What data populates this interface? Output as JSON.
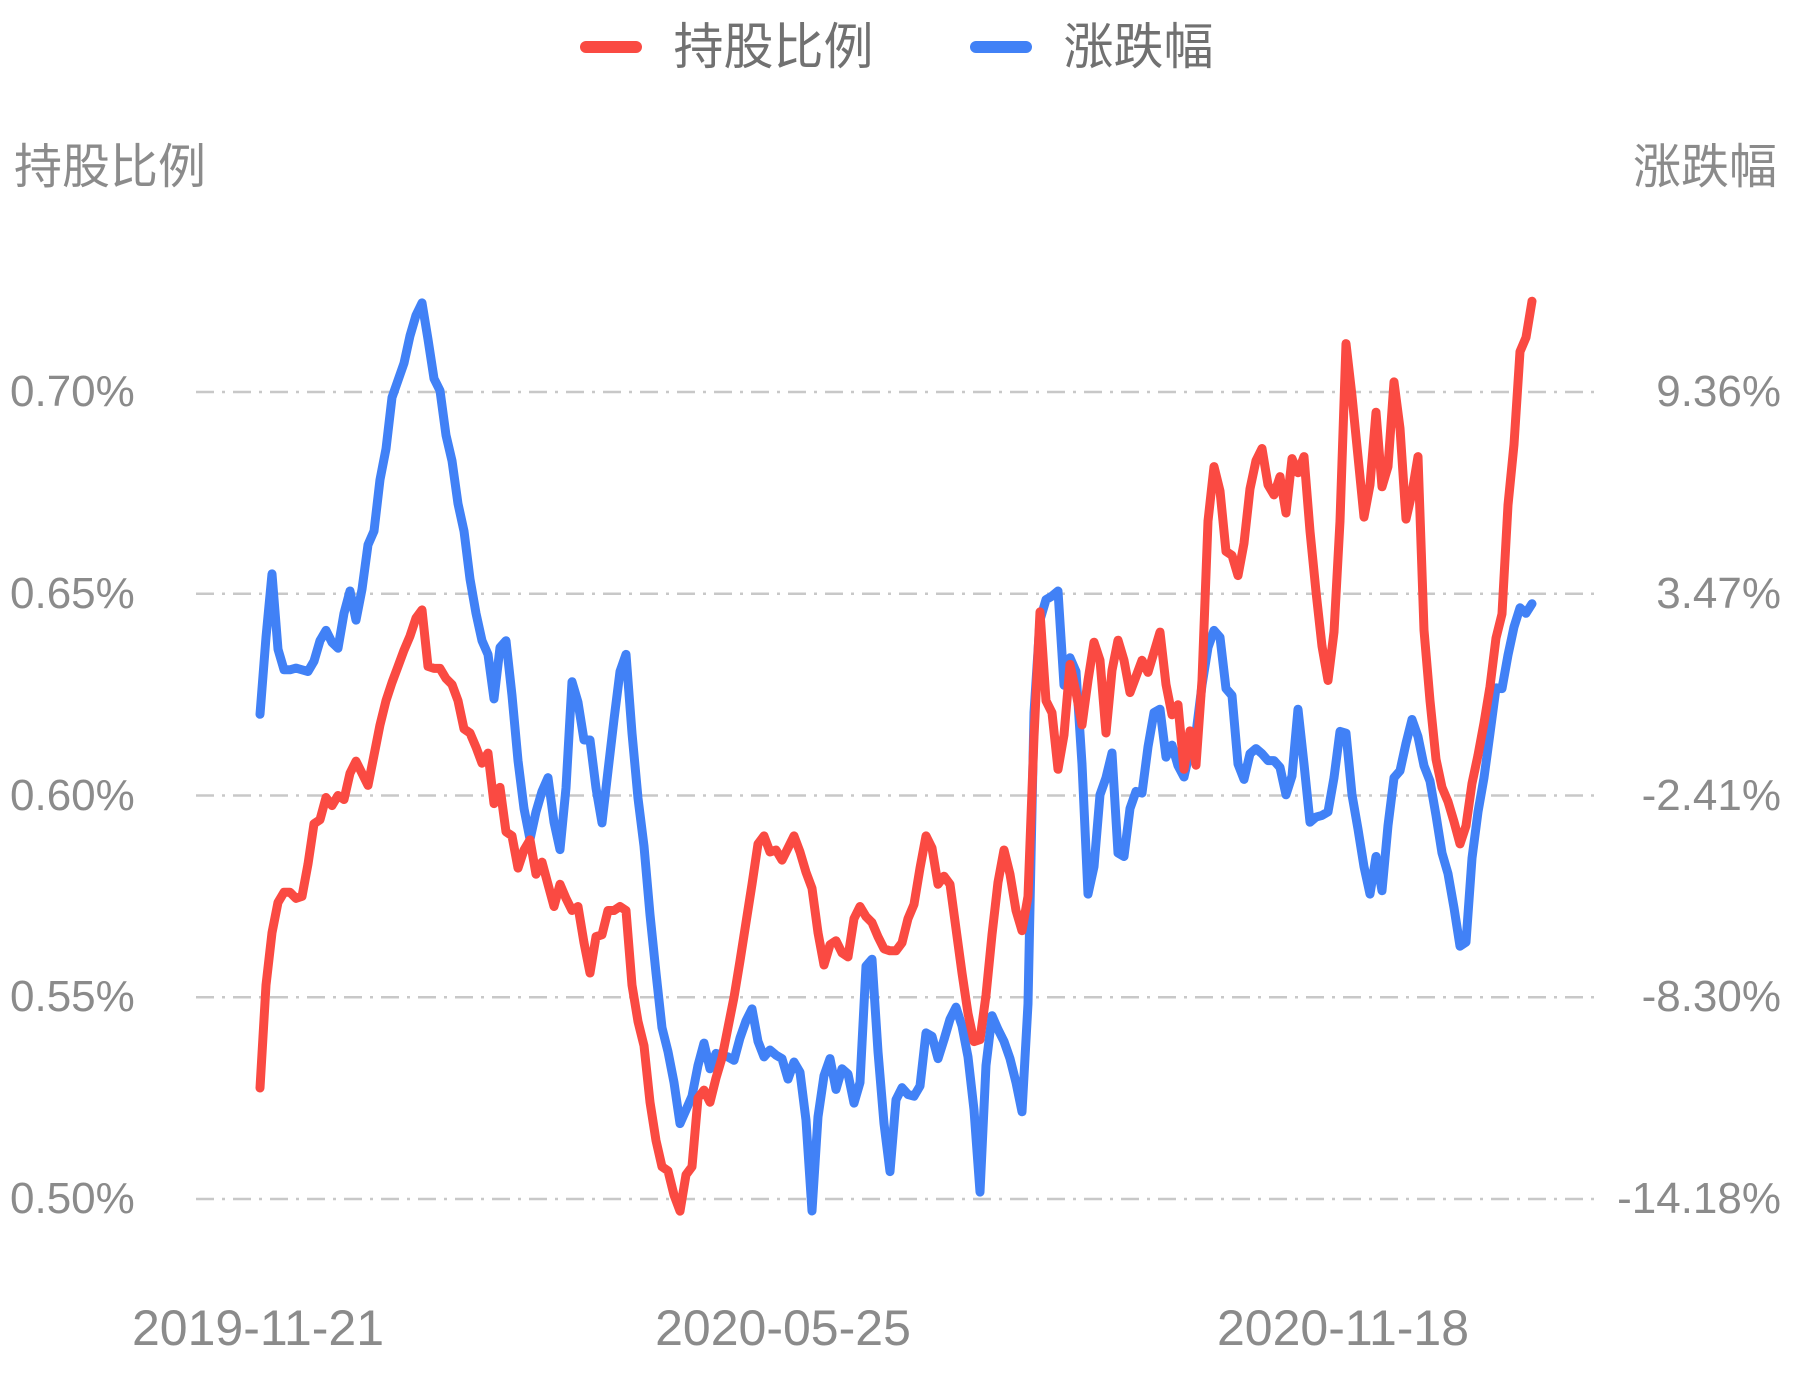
{
  "legend": {
    "items": [
      {
        "label": "持股比例",
        "color": "#fa4a42"
      },
      {
        "label": "涨跌幅",
        "color": "#4181f6"
      }
    ]
  },
  "left_axis": {
    "title": "持股比例",
    "labels": [
      "0.70%",
      "0.65%",
      "0.60%",
      "0.55%",
      "0.50%"
    ]
  },
  "right_axis": {
    "title": "涨跌幅",
    "labels": [
      "9.36%",
      "3.47%",
      "-2.41%",
      "-8.30%",
      "-14.18%"
    ]
  },
  "x_axis": {
    "labels": [
      "2019-11-21",
      "2020-05-25",
      "2020-11-18"
    ]
  },
  "chart_data": {
    "type": "line",
    "title": "",
    "xlabel": "",
    "ylabel_left": "持股比例",
    "ylabel_right": "涨跌幅",
    "x_note": "Daily points evenly spaced in time; axis tick labels shown: 2019-11-21, 2020-05-25, 2020-11-18; data continues past last label.",
    "left_axis": {
      "ticks": [
        0.7,
        0.65,
        0.6,
        0.55,
        0.5
      ],
      "unit": "%"
    },
    "right_axis": {
      "ticks": [
        9.36,
        3.47,
        -2.41,
        -8.3,
        -14.18
      ],
      "unit": "%"
    },
    "grid": "horizontal dash-dot lines",
    "legend_position": "top-center",
    "series": [
      {
        "name": "持股比例",
        "axis": "left",
        "unit": "%",
        "color": "#fa4a42",
        "values": [
          0.5275,
          0.553,
          0.566,
          0.5735,
          0.576,
          0.576,
          0.5745,
          0.575,
          0.583,
          0.593,
          0.594,
          0.5995,
          0.5975,
          0.6,
          0.599,
          0.6055,
          0.6085,
          0.6055,
          0.6025,
          0.61,
          0.6175,
          0.6235,
          0.628,
          0.632,
          0.636,
          0.6395,
          0.644,
          0.646,
          0.632,
          0.6315,
          0.6315,
          0.629,
          0.6275,
          0.6235,
          0.6165,
          0.6155,
          0.612,
          0.608,
          0.6105,
          0.598,
          0.602,
          0.591,
          0.59,
          0.582,
          0.5865,
          0.589,
          0.5805,
          0.5835,
          0.578,
          0.5725,
          0.578,
          0.5745,
          0.5715,
          0.5725,
          0.5635,
          0.556,
          0.565,
          0.5655,
          0.5715,
          0.5715,
          0.5725,
          0.5715,
          0.553,
          0.544,
          0.538,
          0.524,
          0.5145,
          0.508,
          0.507,
          0.501,
          0.497,
          0.506,
          0.508,
          0.525,
          0.527,
          0.524,
          0.53,
          0.535,
          0.5425,
          0.55,
          0.559,
          0.5685,
          0.578,
          0.588,
          0.59,
          0.586,
          0.5865,
          0.584,
          0.587,
          0.59,
          0.586,
          0.581,
          0.577,
          0.566,
          0.558,
          0.563,
          0.564,
          0.561,
          0.56,
          0.5695,
          0.5725,
          0.57,
          0.5685,
          0.565,
          0.562,
          0.5615,
          0.5615,
          0.5635,
          0.5695,
          0.573,
          0.582,
          0.59,
          0.587,
          0.578,
          0.58,
          0.578,
          0.567,
          0.556,
          0.546,
          0.539,
          0.5395,
          0.5505,
          0.5655,
          0.5785,
          0.5865,
          0.5805,
          0.5715,
          0.5665,
          0.575,
          0.6145,
          0.6455,
          0.6235,
          0.6205,
          0.6065,
          0.615,
          0.6325,
          0.6255,
          0.6175,
          0.6285,
          0.638,
          0.6335,
          0.6155,
          0.631,
          0.6385,
          0.6335,
          0.6255,
          0.6295,
          0.6335,
          0.6305,
          0.6355,
          0.6405,
          0.6275,
          0.62,
          0.6225,
          0.6065,
          0.616,
          0.6075,
          0.6285,
          0.668,
          0.6815,
          0.6755,
          0.6605,
          0.6595,
          0.6545,
          0.6625,
          0.676,
          0.683,
          0.686,
          0.677,
          0.6745,
          0.679,
          0.67,
          0.6835,
          0.68,
          0.684,
          0.6655,
          0.6505,
          0.637,
          0.6285,
          0.6405,
          0.668,
          0.712,
          0.699,
          0.684,
          0.669,
          0.677,
          0.695,
          0.6765,
          0.6815,
          0.7025,
          0.691,
          0.6685,
          0.675,
          0.684,
          0.641,
          0.6235,
          0.609,
          0.602,
          0.5985,
          0.5935,
          0.588,
          0.5925,
          0.603,
          0.61,
          0.618,
          0.627,
          0.639,
          0.645,
          0.672,
          0.687,
          0.71,
          0.7135,
          0.7225
        ]
      },
      {
        "name": "涨跌幅",
        "axis": "right",
        "unit": "%",
        "color": "#4181f6",
        "values": [
          -0.05,
          2.2,
          4.05,
          1.85,
          1.25,
          1.25,
          1.3,
          1.25,
          1.2,
          1.5,
          2.1,
          2.4,
          2.05,
          1.88,
          2.9,
          3.55,
          2.7,
          3.6,
          4.9,
          5.3,
          6.8,
          7.7,
          9.2,
          9.7,
          10.2,
          11.0,
          11.6,
          11.96,
          10.9,
          9.75,
          9.4,
          8.1,
          7.35,
          6.1,
          5.3,
          3.9,
          2.9,
          2.1,
          1.7,
          0.4,
          1.9,
          2.1,
          0.5,
          -1.4,
          -2.8,
          -3.7,
          -2.9,
          -2.3,
          -1.9,
          -3.2,
          -4.0,
          -2.2,
          0.9,
          0.3,
          -0.8,
          -0.8,
          -2.2,
          -3.22,
          -1.7,
          -0.2,
          1.2,
          1.7,
          -0.6,
          -2.5,
          -3.9,
          -5.9,
          -7.6,
          -9.2,
          -9.9,
          -10.8,
          -12.0,
          -11.6,
          -11.2,
          -10.3,
          -9.65,
          -10.4,
          -9.95,
          -10.0,
          -10.05,
          -10.15,
          -9.5,
          -9.0,
          -8.65,
          -9.6,
          -10.05,
          -9.85,
          -10.0,
          -10.1,
          -10.7,
          -10.2,
          -10.5,
          -11.9,
          -14.55,
          -11.8,
          -10.6,
          -10.1,
          -11.0,
          -10.4,
          -10.55,
          -11.4,
          -10.8,
          -7.4,
          -7.2,
          -9.9,
          -12.0,
          -13.4,
          -11.3,
          -10.95,
          -11.15,
          -11.2,
          -10.9,
          -9.35,
          -9.45,
          -10.1,
          -9.55,
          -8.95,
          -8.6,
          -9.15,
          -10.05,
          -11.6,
          -14.0,
          -10.3,
          -8.85,
          -9.25,
          -9.6,
          -10.1,
          -10.8,
          -11.65,
          -8.5,
          0.0,
          2.7,
          3.3,
          3.4,
          3.55,
          0.8,
          1.6,
          1.2,
          -1.5,
          -5.3,
          -4.5,
          -2.4,
          -1.9,
          -1.18,
          -4.1,
          -4.2,
          -2.8,
          -2.3,
          -2.35,
          -1.0,
          0.0,
          0.1,
          -1.3,
          -0.95,
          -1.55,
          -1.88,
          -1.1,
          -0.6,
          0.8,
          1.9,
          2.4,
          2.2,
          0.7,
          0.5,
          -1.5,
          -1.95,
          -1.2,
          -1.05,
          -1.2,
          -1.4,
          -1.4,
          -1.6,
          -2.4,
          -1.85,
          0.1,
          -1.5,
          -3.2,
          -3.05,
          -3.0,
          -2.9,
          -1.9,
          -0.55,
          -0.6,
          -2.4,
          -3.4,
          -4.5,
          -5.3,
          -4.2,
          -5.2,
          -3.3,
          -1.9,
          -1.7,
          -0.9,
          -0.2,
          -0.7,
          -1.55,
          -2.0,
          -3.0,
          -4.1,
          -4.7,
          -5.7,
          -6.82,
          -6.7,
          -4.25,
          -2.9,
          -1.9,
          -0.6,
          0.72,
          0.7,
          1.68,
          2.5,
          3.06,
          2.9,
          3.18
        ]
      }
    ]
  }
}
